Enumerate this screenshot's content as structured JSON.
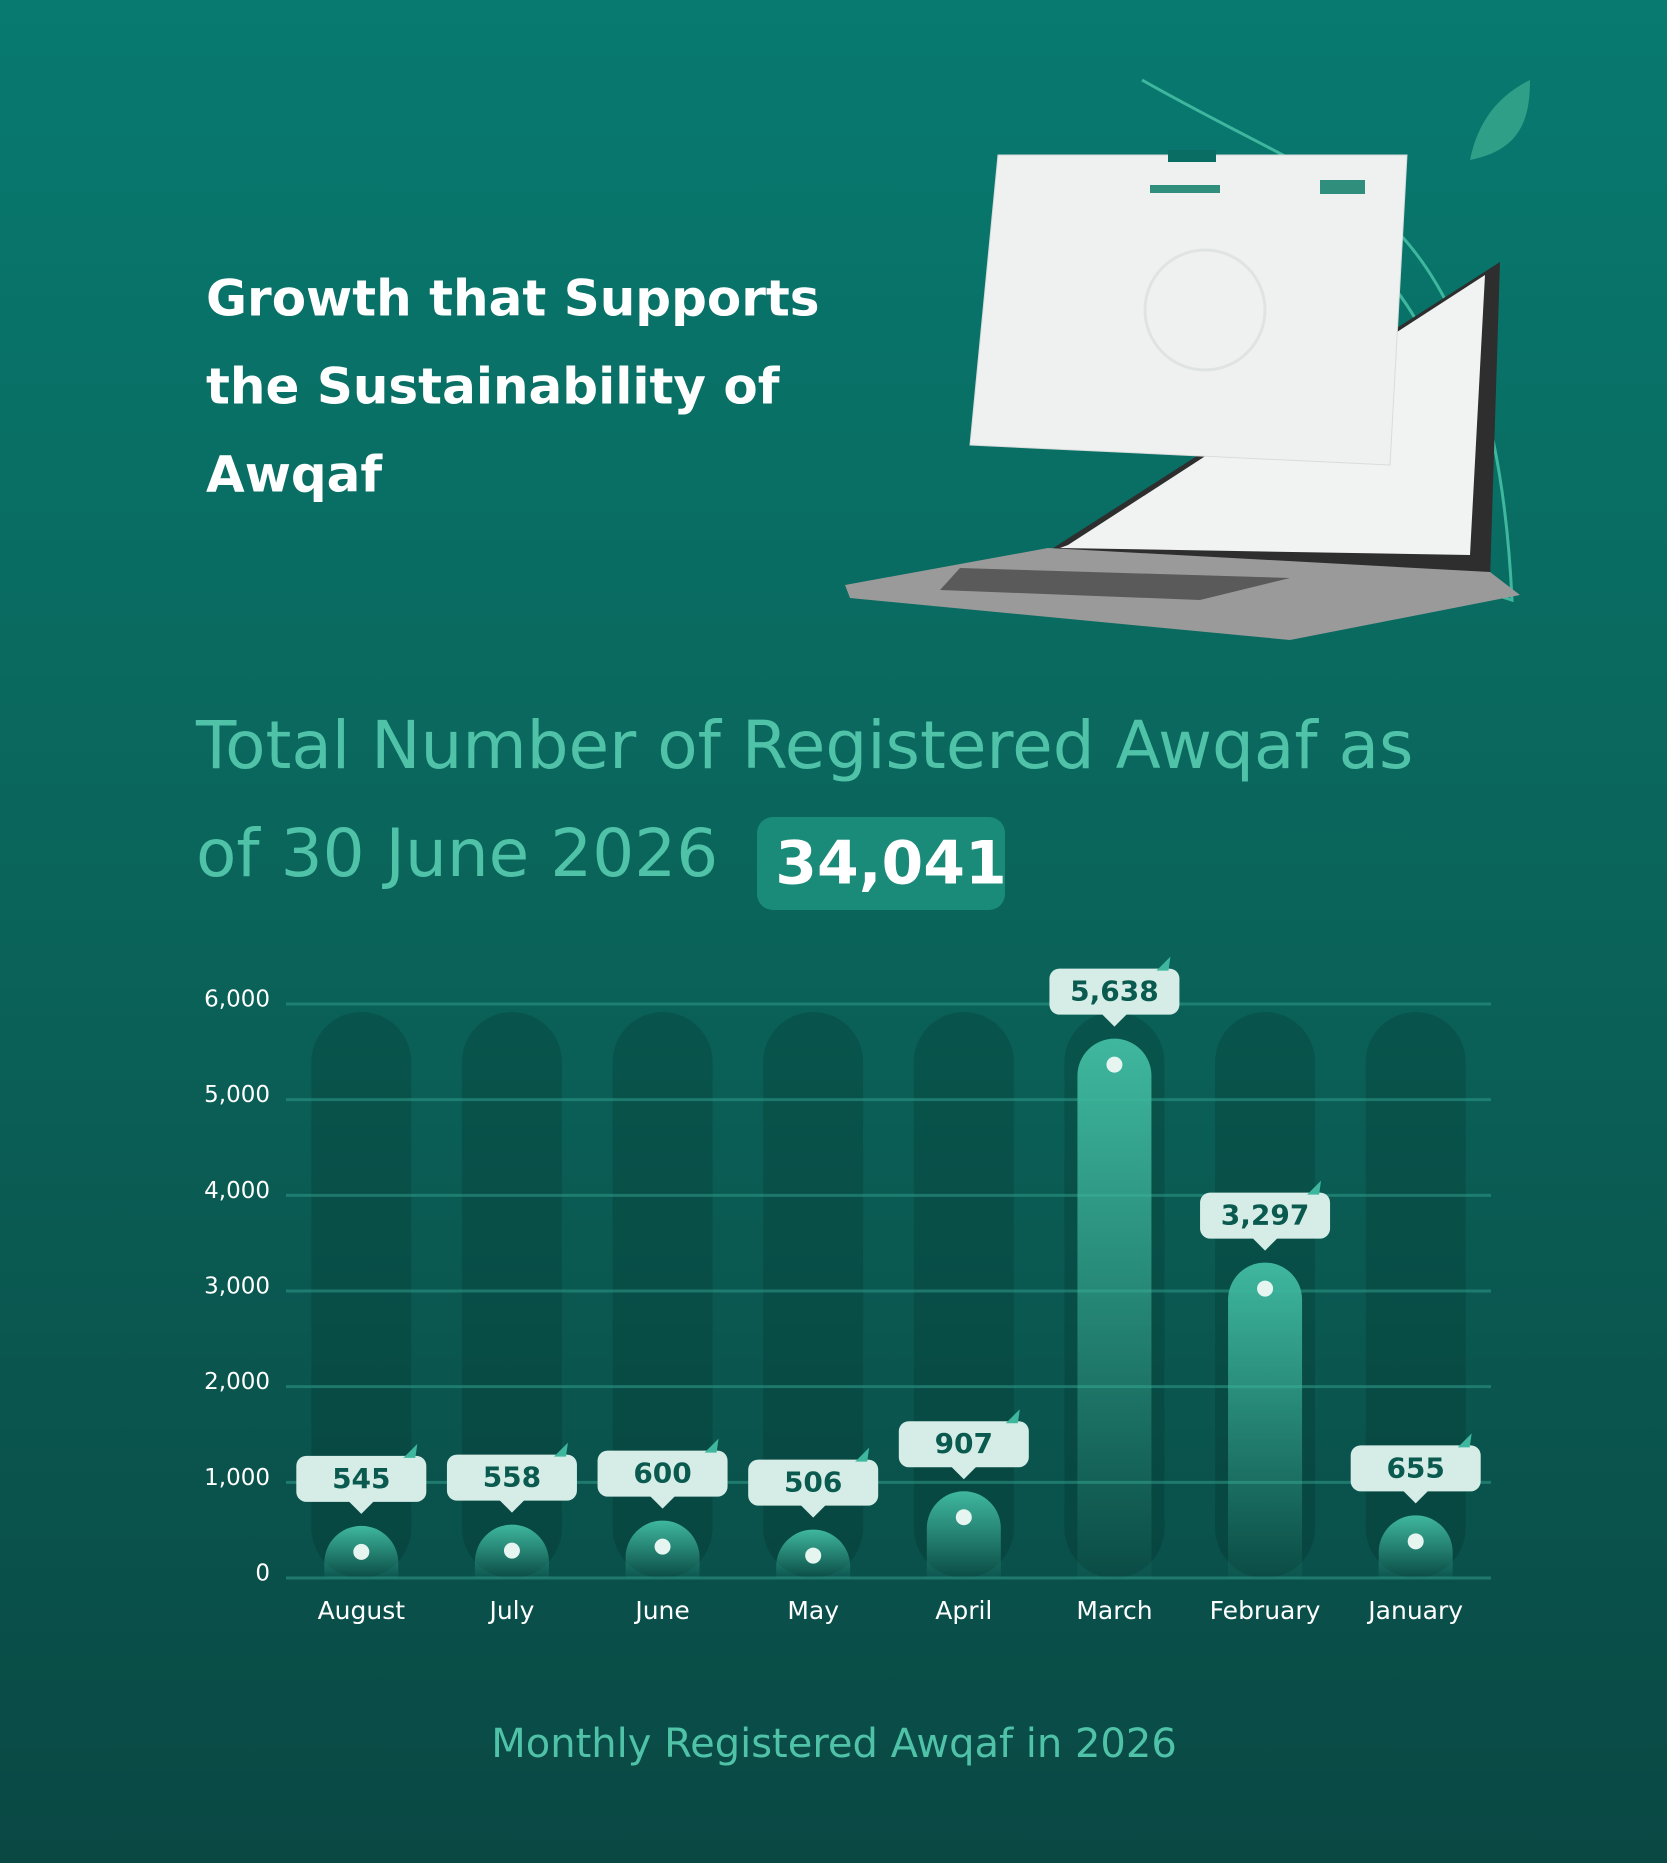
{
  "header": {
    "title_lines": [
      "Growth that Supports",
      "the Sustainability of",
      "Awqaf"
    ]
  },
  "chart_data": {
    "type": "bar",
    "title_lines": [
      "Total Number of Registered Awqaf as",
      "of 30 June 2026"
    ],
    "total": "34,041",
    "caption": "Monthly Registered Awqaf in 2026",
    "categories": [
      "August",
      "July",
      "June",
      "May",
      "April",
      "March",
      "February",
      "January"
    ],
    "values": [
      545,
      558,
      600,
      506,
      907,
      5638,
      3297,
      655
    ],
    "value_labels": [
      "545",
      "558",
      "600",
      "506",
      "907",
      "5,638",
      "3,297",
      "655"
    ],
    "color": "#3fb79e",
    "ylim": [
      0,
      6000
    ],
    "yticks": [
      0,
      {
        "value": 1000,
        "label": "1,000"
      },
      {
        "value": 2000,
        "label": "2,000"
      },
      {
        "value": 3000,
        "label": "3,000"
      },
      {
        "value": 4000,
        "label": "4,000"
      },
      {
        "value": 5000,
        "label": "5,000"
      },
      {
        "value": 6000,
        "label": "6,000"
      }
    ],
    "grid": true
  }
}
